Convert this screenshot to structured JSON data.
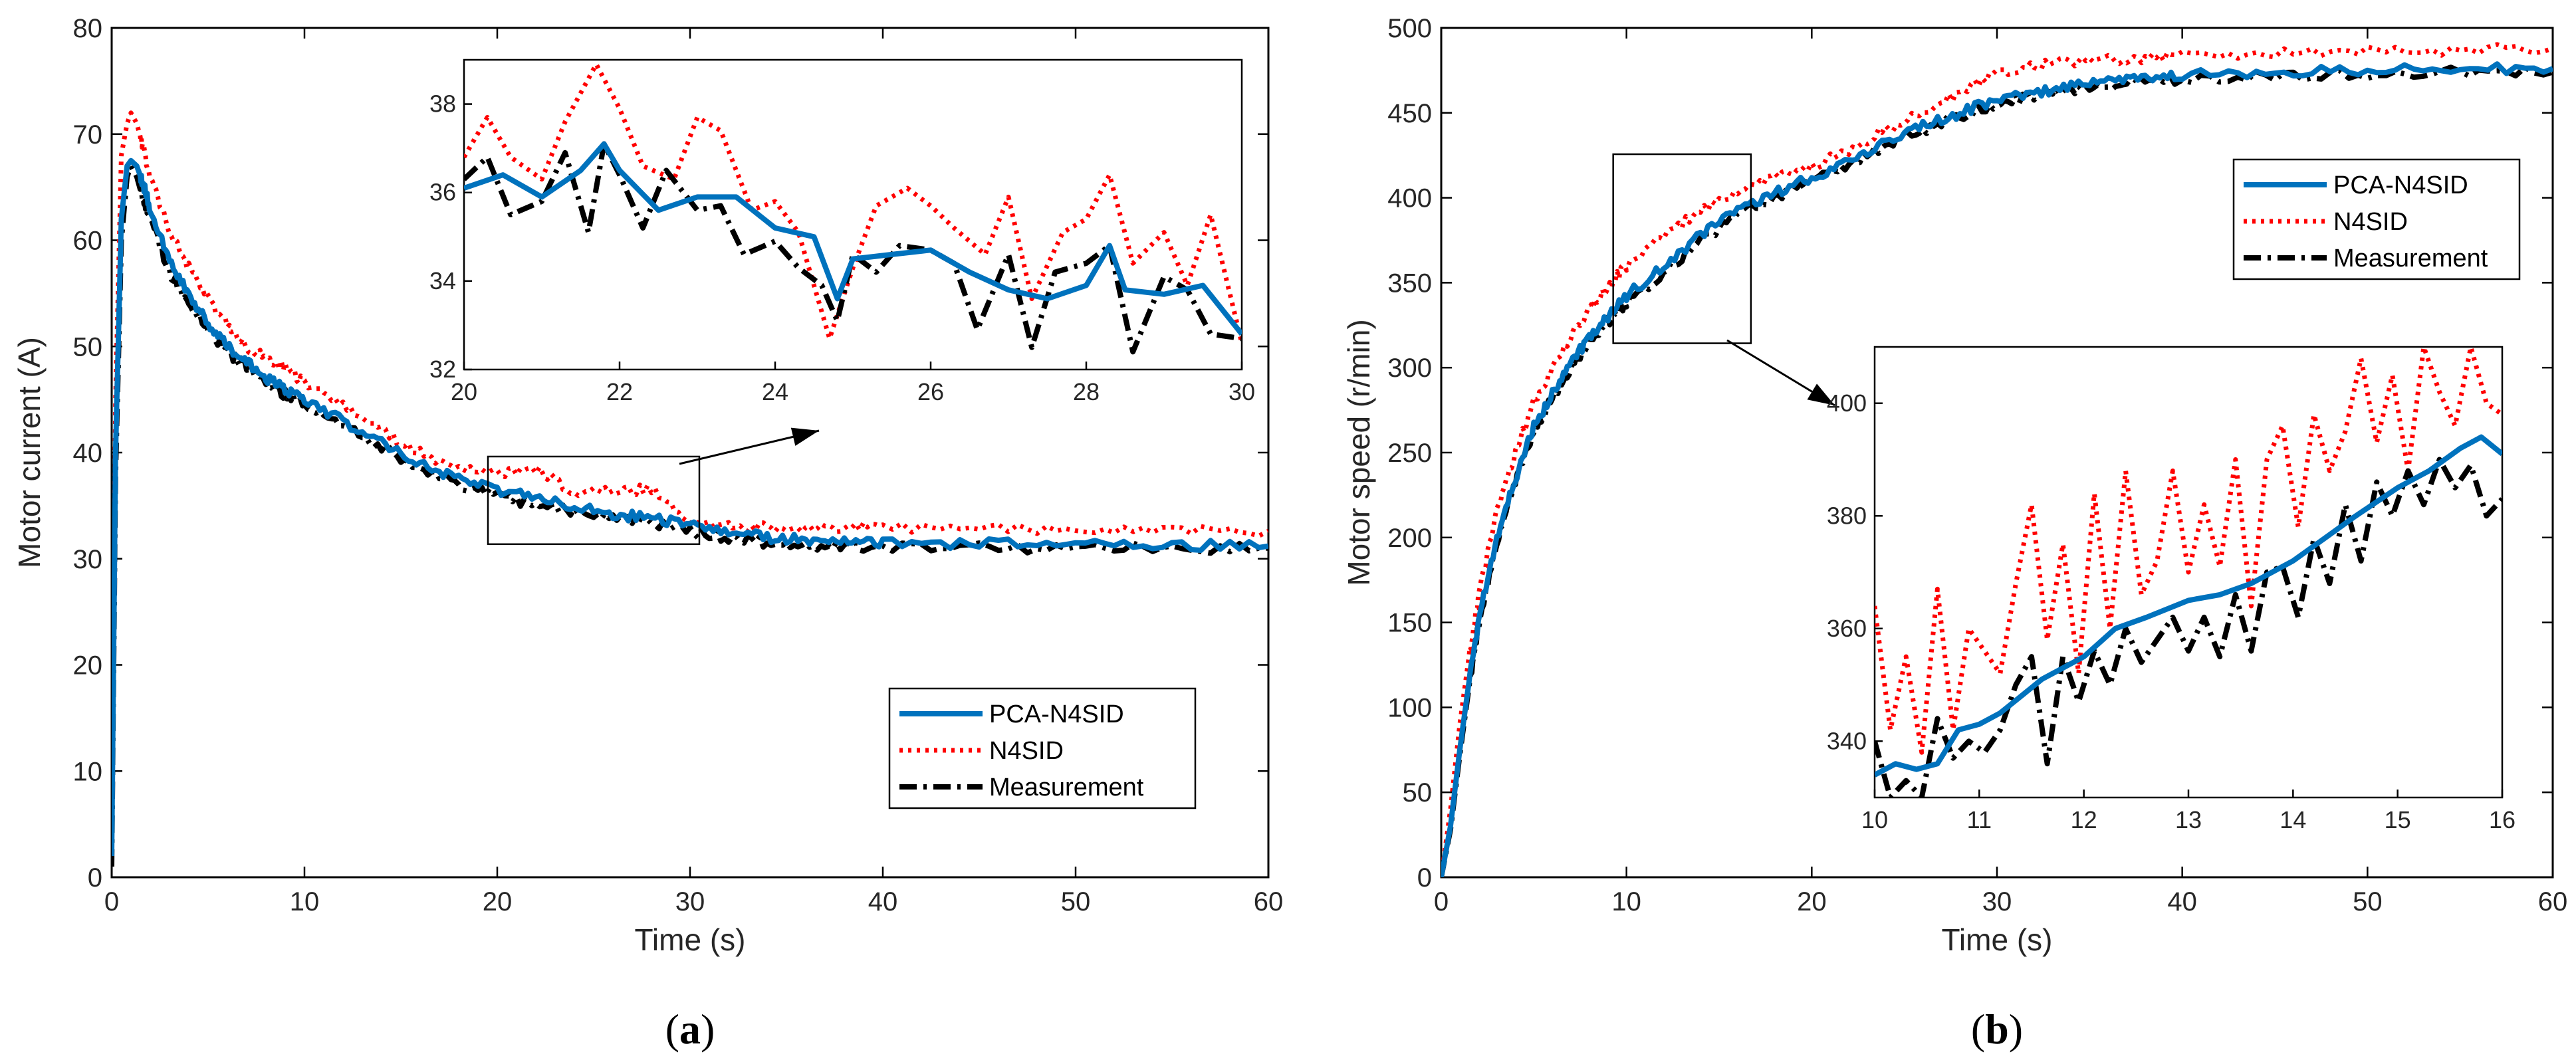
{
  "chart_data": [
    {
      "type": "line",
      "panel": "a",
      "caption": "(a)",
      "caption_letter": "a",
      "xlabel": "Time (s)",
      "ylabel": "Motor current (A)",
      "xlim": [
        0,
        60
      ],
      "ylim": [
        0,
        80
      ],
      "xticks": [
        0,
        10,
        20,
        30,
        40,
        50,
        60
      ],
      "yticks": [
        0,
        10,
        20,
        30,
        40,
        50,
        60,
        70,
        80
      ],
      "legend_position": "lower-right",
      "series": [
        {
          "name": "PCA-N4SID",
          "color": "#0072BD",
          "style": "solid",
          "x": [
            0,
            0.2,
            0.5,
            0.8,
            1.0,
            1.3,
            1.6,
            2,
            3,
            4,
            5,
            6,
            7,
            8,
            9,
            10,
            12,
            14,
            16,
            18,
            20,
            22,
            24,
            26,
            28,
            30,
            32,
            34,
            36,
            38,
            40,
            45,
            50,
            55,
            60
          ],
          "y": [
            2,
            40,
            62,
            67,
            67.5,
            67,
            65.5,
            63,
            58,
            55,
            52,
            50,
            48.5,
            47,
            46,
            45,
            43,
            41,
            39,
            37.5,
            36.5,
            35.8,
            35,
            34.2,
            33.8,
            33.2,
            32.5,
            32,
            31.8,
            31.6,
            31.5,
            31.4,
            31.3,
            31.3,
            31.2
          ]
        },
        {
          "name": "N4SID",
          "color": "#FF0000",
          "style": "dotted",
          "x": [
            0,
            0.2,
            0.5,
            0.8,
            1.0,
            1.3,
            1.6,
            2,
            3,
            4,
            5,
            6,
            7,
            8,
            9,
            10,
            12,
            14,
            16,
            18,
            20,
            22,
            24,
            26,
            28,
            30,
            32,
            34,
            36,
            38,
            40,
            45,
            50,
            55,
            60
          ],
          "y": [
            2,
            45,
            68,
            71,
            72,
            71,
            69,
            66,
            61,
            57.5,
            54.5,
            52,
            50,
            49,
            48,
            46.5,
            44.5,
            42,
            40,
            38.5,
            38,
            38.5,
            36,
            36.5,
            36.5,
            33.5,
            33,
            33,
            32.8,
            33,
            33,
            32.8,
            32.8,
            32.8,
            32.6
          ]
        },
        {
          "name": "Measurement",
          "color": "#000000",
          "style": "dashdot",
          "x": [
            0,
            0.2,
            0.5,
            0.8,
            1.0,
            1.3,
            1.6,
            2,
            3,
            4,
            5,
            6,
            7,
            8,
            9,
            10,
            12,
            14,
            16,
            18,
            20,
            22,
            24,
            26,
            28,
            30,
            32,
            34,
            36,
            38,
            40,
            45,
            50,
            55,
            60
          ],
          "y": [
            1,
            38,
            60,
            66,
            67,
            66,
            64,
            62,
            57,
            54,
            51.5,
            49.5,
            48,
            46.5,
            45.5,
            44.5,
            42.5,
            40.5,
            38.5,
            37,
            36,
            35,
            34.5,
            34,
            33.5,
            32.5,
            32,
            31.5,
            31.3,
            31.2,
            31,
            31,
            31,
            31,
            31
          ]
        }
      ],
      "inset": {
        "xlim": [
          20,
          30
        ],
        "ylim": [
          32,
          39
        ],
        "xticks": [
          20,
          22,
          24,
          26,
          28,
          30
        ],
        "yticks": [
          32,
          34,
          36,
          38
        ],
        "series": [
          {
            "name": "PCA-N4SID",
            "x": [
              20,
              20.5,
              21,
              21.5,
              21.8,
              22,
              22.5,
              23,
              23.5,
              24,
              24.5,
              24.8,
              25,
              25.5,
              26,
              26.5,
              27,
              27.5,
              28,
              28.3,
              28.5,
              29,
              29.5,
              30
            ],
            "y": [
              36.1,
              36.4,
              35.9,
              36.5,
              37.1,
              36.5,
              35.6,
              35.9,
              35.9,
              35.2,
              35,
              33.6,
              34.5,
              34.6,
              34.7,
              34.2,
              33.8,
              33.6,
              33.9,
              34.8,
              33.8,
              33.7,
              33.9,
              32.8
            ]
          },
          {
            "name": "N4SID",
            "x": [
              20,
              20.3,
              20.6,
              21,
              21.3,
              21.7,
              22,
              22.3,
              22.7,
              23,
              23.3,
              23.7,
              24,
              24.3,
              24.7,
              25,
              25.3,
              25.7,
              26,
              26.3,
              26.7,
              27,
              27.3,
              27.7,
              28,
              28.3,
              28.6,
              29,
              29.3,
              29.6,
              30
            ],
            "y": [
              36.8,
              37.7,
              36.8,
              36.3,
              37.6,
              38.9,
              37.9,
              36.6,
              36.3,
              37.7,
              37.4,
              35.6,
              35.8,
              35.1,
              32.7,
              34.3,
              35.7,
              36.1,
              35.7,
              35.2,
              34.6,
              35.9,
              33.6,
              35.1,
              35.4,
              36.4,
              34.4,
              35.1,
              33.9,
              35.5,
              32.6
            ]
          },
          {
            "name": "Measurement",
            "x": [
              20,
              20.3,
              20.6,
              21,
              21.3,
              21.6,
              21.8,
              22,
              22.3,
              22.6,
              23,
              23.3,
              23.6,
              24,
              24.3,
              24.6,
              24.8,
              25,
              25.3,
              25.6,
              26,
              26.3,
              26.6,
              27,
              27.3,
              27.6,
              28,
              28.3,
              28.6,
              29,
              29.3,
              29.6,
              30
            ],
            "y": [
              36.3,
              36.8,
              35.5,
              35.8,
              36.9,
              35.1,
              37.1,
              36.4,
              35.2,
              36.5,
              35.6,
              35.7,
              34.6,
              34.9,
              34.3,
              33.9,
              33.1,
              34.6,
              34.2,
              34.8,
              34.7,
              34.4,
              32.9,
              34.6,
              32.5,
              34.2,
              34.4,
              34.8,
              32.4,
              34.1,
              33.8,
              32.8,
              32.7
            ]
          }
        ]
      }
    },
    {
      "type": "line",
      "panel": "b",
      "caption": "(b)",
      "caption_letter": "b",
      "xlabel": "Time (s)",
      "ylabel": "Motor speed (r/min)",
      "xlim": [
        0,
        60
      ],
      "ylim": [
        0,
        500
      ],
      "xticks": [
        0,
        10,
        20,
        30,
        40,
        50,
        60
      ],
      "yticks": [
        0,
        50,
        100,
        150,
        200,
        250,
        300,
        350,
        400,
        450,
        500
      ],
      "legend_position": "upper-right",
      "series": [
        {
          "name": "PCA-N4SID",
          "color": "#0072BD",
          "style": "solid",
          "x": [
            0,
            0.5,
            1,
            1.5,
            2,
            3,
            4,
            5,
            6,
            7,
            8,
            9,
            10,
            12,
            14,
            16,
            18,
            20,
            22,
            24,
            26,
            28,
            30,
            32,
            34,
            36,
            38,
            40,
            45,
            50,
            55,
            60
          ],
          "y": [
            0,
            30,
            75,
            115,
            150,
            200,
            235,
            265,
            285,
            303,
            318,
            330,
            342,
            360,
            378,
            393,
            403,
            412,
            422,
            432,
            442,
            450,
            458,
            462,
            466,
            468,
            470,
            472,
            474,
            475,
            476,
            476
          ]
        },
        {
          "name": "N4SID",
          "color": "#FF0000",
          "style": "dotted",
          "x": [
            0,
            0.5,
            1,
            1.5,
            2,
            3,
            4,
            5,
            6,
            7,
            8,
            9,
            10,
            12,
            14,
            16,
            18,
            20,
            22,
            24,
            26,
            28,
            30,
            32,
            34,
            36,
            38,
            40,
            45,
            50,
            55,
            60
          ],
          "y": [
            0,
            40,
            90,
            130,
            165,
            215,
            250,
            280,
            300,
            318,
            333,
            348,
            360,
            378,
            393,
            402,
            412,
            418,
            428,
            440,
            450,
            462,
            474,
            478,
            480,
            481,
            482,
            484,
            485,
            486,
            487,
            488
          ]
        },
        {
          "name": "Measurement",
          "color": "#000000",
          "style": "dashdot",
          "x": [
            0,
            0.5,
            1,
            1.5,
            2,
            3,
            4,
            5,
            6,
            7,
            8,
            9,
            10,
            12,
            14,
            16,
            18,
            20,
            22,
            24,
            26,
            28,
            30,
            32,
            34,
            36,
            38,
            40,
            45,
            50,
            55,
            60
          ],
          "y": [
            0,
            28,
            72,
            112,
            148,
            196,
            232,
            262,
            282,
            300,
            315,
            327,
            338,
            356,
            374,
            390,
            400,
            410,
            420,
            430,
            440,
            448,
            455,
            460,
            464,
            466,
            468,
            470,
            472,
            473,
            474,
            474
          ]
        }
      ],
      "inset": {
        "xlim": [
          10,
          16
        ],
        "ylim": [
          330,
          410
        ],
        "xticks": [
          10,
          11,
          12,
          13,
          14,
          15,
          16
        ],
        "yticks": [
          340,
          360,
          380,
          400
        ],
        "series": [
          {
            "name": "PCA-N4SID",
            "x": [
              10,
              10.2,
              10.4,
              10.6,
              10.8,
              11,
              11.2,
              11.4,
              11.6,
              11.8,
              12,
              12.3,
              12.6,
              13,
              13.3,
              13.6,
              14,
              14.3,
              14.6,
              15,
              15.3,
              15.6,
              15.8,
              16
            ],
            "y": [
              334,
              336,
              335,
              336,
              342,
              343,
              345,
              348,
              351,
              353,
              355,
              360,
              362,
              365,
              366,
              368,
              372,
              376,
              380,
              385,
              388,
              392,
              394,
              391
            ]
          },
          {
            "name": "N4SID",
            "x": [
              10,
              10.15,
              10.3,
              10.45,
              10.6,
              10.75,
              10.9,
              11.05,
              11.2,
              11.35,
              11.5,
              11.65,
              11.8,
              11.95,
              12.1,
              12.25,
              12.4,
              12.55,
              12.7,
              12.85,
              13,
              13.15,
              13.3,
              13.45,
              13.6,
              13.75,
              13.9,
              14.05,
              14.2,
              14.35,
              14.5,
              14.65,
              14.8,
              14.95,
              15.1,
              15.25,
              15.4,
              15.55,
              15.7,
              15.85,
              16
            ],
            "y": [
              364,
              342,
              355,
              338,
              367,
              342,
              360,
              356,
              352,
              368,
              382,
              358,
              375,
              352,
              384,
              360,
              388,
              366,
              372,
              388,
              370,
              382,
              371,
              390,
              364,
              390,
              396,
              378,
              398,
              388,
              395,
              408,
              393,
              405,
              388,
              410,
              402,
              396,
              410,
              400,
              398
            ]
          },
          {
            "name": "Measurement",
            "x": [
              10,
              10.15,
              10.3,
              10.45,
              10.6,
              10.75,
              10.9,
              11.05,
              11.2,
              11.35,
              11.5,
              11.65,
              11.8,
              11.95,
              12.1,
              12.25,
              12.4,
              12.55,
              12.7,
              12.85,
              13,
              13.15,
              13.3,
              13.45,
              13.6,
              13.75,
              13.9,
              14.05,
              14.2,
              14.35,
              14.5,
              14.65,
              14.8,
              14.95,
              15.1,
              15.25,
              15.4,
              15.55,
              15.7,
              15.85,
              16
            ],
            "y": [
              340,
              330,
              333,
              330,
              344,
              337,
              340,
              338,
              342,
              350,
              355,
              336,
              355,
              347,
              356,
              350,
              360,
              354,
              358,
              362,
              356,
              362,
              355,
              366,
              356,
              370,
              371,
              362,
              376,
              368,
              382,
              372,
              386,
              380,
              388,
              382,
              390,
              385,
              389,
              380,
              383
            ]
          }
        ]
      }
    }
  ]
}
